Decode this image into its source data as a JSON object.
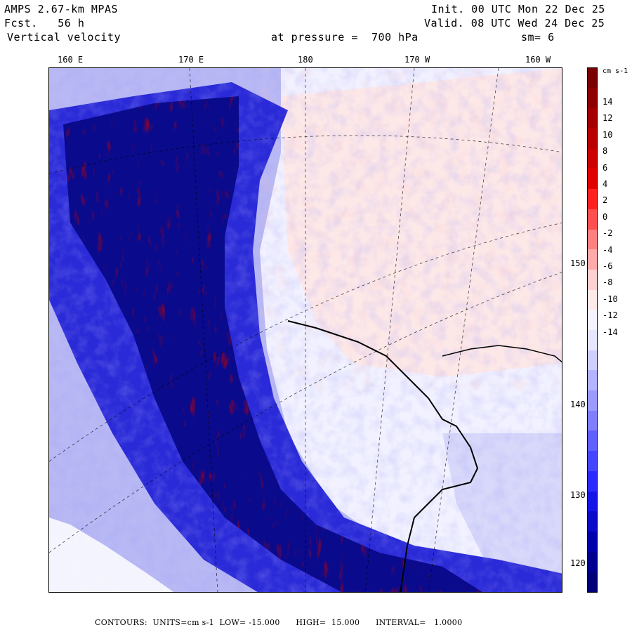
{
  "header": {
    "model": "AMPS 2.67-km MPAS",
    "forecast": "Fcst.   56 h",
    "field": "Vertical velocity",
    "level": "at pressure =  700 hPa",
    "init": "Init. 00 UTC Mon 22 Dec 25",
    "valid": "Valid. 08 UTC Wed 24 Dec 25",
    "smoothing": "sm= 6"
  },
  "map": {
    "top_longitudes": [
      "160 E",
      "170 E",
      "180",
      "170 W",
      "160 W"
    ],
    "right_latitudes": [
      "150 W",
      "140 W",
      "130 W",
      "120 W"
    ]
  },
  "colorbar": {
    "units": "cm s-1",
    "labels": [
      "14",
      "12",
      "10",
      "8",
      "6",
      "4",
      "2",
      "0",
      "-2",
      "-4",
      "-6",
      "-8",
      "-10",
      "-12",
      "-14"
    ],
    "colors": [
      "#7a0000",
      "#8e0000",
      "#a30000",
      "#b80000",
      "#cc0000",
      "#e00000",
      "#ff2020",
      "#ff5050",
      "#ff8080",
      "#ffaaaa",
      "#ffd0d0",
      "#ffeaea",
      "#f4f4ff",
      "#e6e6ff",
      "#cfcfff",
      "#b3b3ff",
      "#9a9aff",
      "#7f7fff",
      "#6060ff",
      "#4545ff",
      "#2a2aff",
      "#1414e6",
      "#0a0ac8",
      "#0000aa",
      "#000090",
      "#000078"
    ]
  },
  "footer": {
    "text": "CONTOURS:  UNITS=cm s-1  LOW= -15.000      HIGH=  15.000      INTERVAL=   1.0000"
  }
}
